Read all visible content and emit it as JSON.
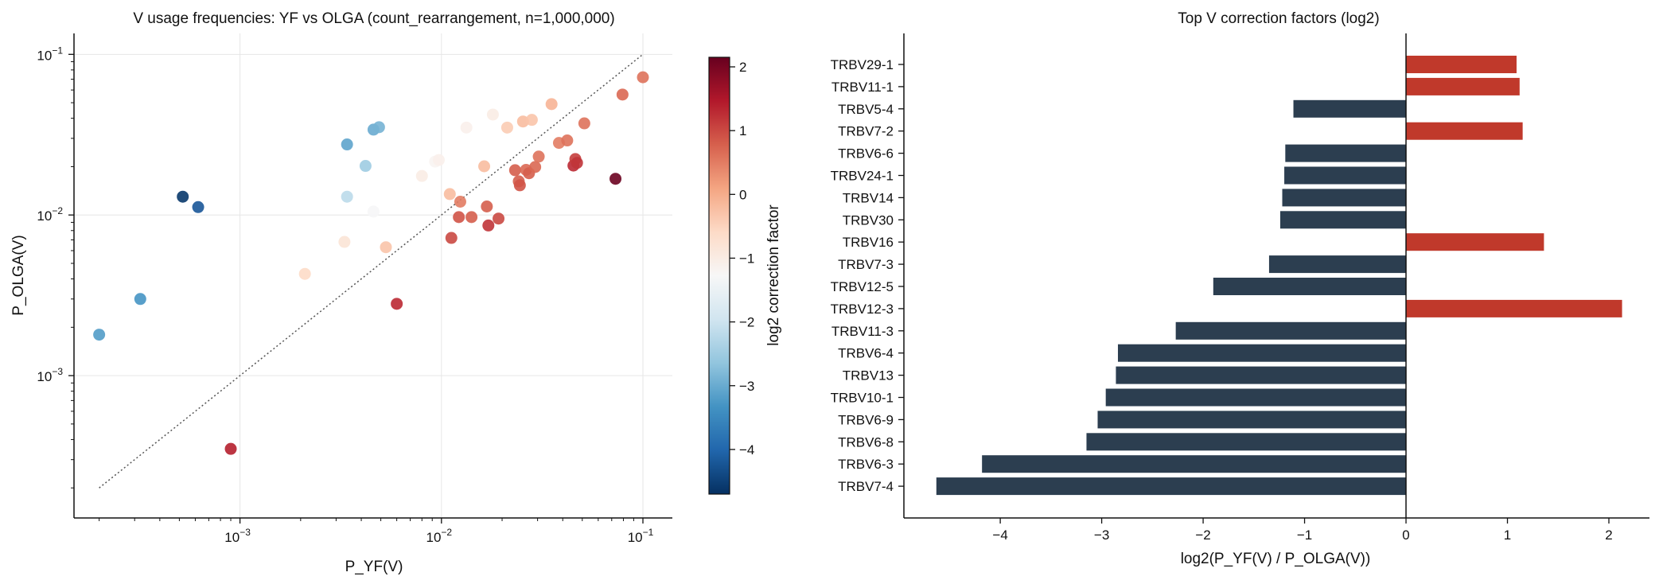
{
  "chart_data": [
    {
      "type": "scatter",
      "title": "V usage frequencies: YF vs OLGA (count_rearrangement, n=1,000,000)",
      "xlabel": "P_YF(V)",
      "ylabel": "P_OLGA(V)",
      "xscale": "log",
      "yscale": "log",
      "xlim": [
        0.00015,
        0.14
      ],
      "ylim": [
        0.00013,
        0.135
      ],
      "x_ticks": [
        {
          "value": 0.001,
          "base": "10",
          "exp": "−3"
        },
        {
          "value": 0.01,
          "base": "10",
          "exp": "−2"
        },
        {
          "value": 0.1,
          "base": "10",
          "exp": "−1"
        }
      ],
      "y_ticks": [
        {
          "value": 0.001,
          "base": "10",
          "exp": "−3"
        },
        {
          "value": 0.01,
          "base": "10",
          "exp": "−2"
        },
        {
          "value": 0.1,
          "base": "10",
          "exp": "−1"
        }
      ],
      "grid": true,
      "reference_line": {
        "type": "y=x",
        "style": "dotted",
        "range": [
          0.0002,
          0.1
        ]
      },
      "colorbar": {
        "label": "log2 correction factor",
        "range": [
          -4.7,
          2.15
        ],
        "ticks": [
          {
            "value": 2,
            "label": "2"
          },
          {
            "value": 1,
            "label": "1"
          },
          {
            "value": 0,
            "label": "0"
          },
          {
            "value": -1,
            "label": "−1"
          },
          {
            "value": -2,
            "label": "−2"
          },
          {
            "value": -3,
            "label": "−3"
          },
          {
            "value": -4,
            "label": "−4"
          }
        ],
        "colormap": "RdBu_r"
      },
      "points": [
        {
          "x": 0.0002,
          "y": 0.0018,
          "c": -3.2
        },
        {
          "x": 0.00032,
          "y": 0.003,
          "c": -3.3
        },
        {
          "x": 0.00052,
          "y": 0.013,
          "c": -4.6
        },
        {
          "x": 0.00062,
          "y": 0.0112,
          "c": -4.2
        },
        {
          "x": 0.0009,
          "y": 0.00035,
          "c": 1.4
        },
        {
          "x": 0.0021,
          "y": 0.0043,
          "c": -0.6
        },
        {
          "x": 0.0033,
          "y": 0.0068,
          "c": -0.8
        },
        {
          "x": 0.0034,
          "y": 0.0275,
          "c": -3.1
        },
        {
          "x": 0.0034,
          "y": 0.013,
          "c": -2.2
        },
        {
          "x": 0.0042,
          "y": 0.0202,
          "c": -2.5
        },
        {
          "x": 0.0046,
          "y": 0.034,
          "c": -3.0
        },
        {
          "x": 0.0049,
          "y": 0.0352,
          "c": -2.9
        },
        {
          "x": 0.0046,
          "y": 0.0105,
          "c": -1.3
        },
        {
          "x": 0.0053,
          "y": 0.0063,
          "c": -0.3
        },
        {
          "x": 0.006,
          "y": 0.0028,
          "c": 1.3
        },
        {
          "x": 0.008,
          "y": 0.0175,
          "c": -1.0
        },
        {
          "x": 0.0093,
          "y": 0.0215,
          "c": -1.2
        },
        {
          "x": 0.0097,
          "y": 0.022,
          "c": -1.1
        },
        {
          "x": 0.011,
          "y": 0.0135,
          "c": -0.2
        },
        {
          "x": 0.0112,
          "y": 0.0072,
          "c": 1.0
        },
        {
          "x": 0.0122,
          "y": 0.0097,
          "c": 0.9
        },
        {
          "x": 0.0124,
          "y": 0.0121,
          "c": 0.5
        },
        {
          "x": 0.0133,
          "y": 0.035,
          "c": -1.1
        },
        {
          "x": 0.0141,
          "y": 0.0097,
          "c": 0.8
        },
        {
          "x": 0.0163,
          "y": 0.0201,
          "c": -0.2
        },
        {
          "x": 0.0168,
          "y": 0.0113,
          "c": 0.8
        },
        {
          "x": 0.0171,
          "y": 0.0086,
          "c": 1.2
        },
        {
          "x": 0.018,
          "y": 0.0422,
          "c": -1.0
        },
        {
          "x": 0.0192,
          "y": 0.0095,
          "c": 1.0
        },
        {
          "x": 0.0212,
          "y": 0.035,
          "c": -0.4
        },
        {
          "x": 0.0232,
          "y": 0.019,
          "c": 0.8
        },
        {
          "x": 0.0242,
          "y": 0.0162,
          "c": 0.8
        },
        {
          "x": 0.0245,
          "y": 0.0153,
          "c": 0.9
        },
        {
          "x": 0.0254,
          "y": 0.0382,
          "c": -0.2
        },
        {
          "x": 0.0263,
          "y": 0.0191,
          "c": 0.7
        },
        {
          "x": 0.0272,
          "y": 0.0182,
          "c": 0.8
        },
        {
          "x": 0.0281,
          "y": 0.0391,
          "c": -0.3
        },
        {
          "x": 0.0292,
          "y": 0.0199,
          "c": 0.7
        },
        {
          "x": 0.0304,
          "y": 0.0231,
          "c": 0.6
        },
        {
          "x": 0.0352,
          "y": 0.049,
          "c": -0.1
        },
        {
          "x": 0.0383,
          "y": 0.0281,
          "c": 0.5
        },
        {
          "x": 0.0421,
          "y": 0.0291,
          "c": 0.6
        },
        {
          "x": 0.0452,
          "y": 0.0203,
          "c": 1.3
        },
        {
          "x": 0.0462,
          "y": 0.0223,
          "c": 1.1
        },
        {
          "x": 0.0471,
          "y": 0.0211,
          "c": 1.2
        },
        {
          "x": 0.0512,
          "y": 0.0372,
          "c": 0.6
        },
        {
          "x": 0.0731,
          "y": 0.0168,
          "c": 2.1
        },
        {
          "x": 0.0792,
          "y": 0.0562,
          "c": 0.7
        },
        {
          "x": 0.1,
          "y": 0.072,
          "c": 0.6
        }
      ]
    },
    {
      "type": "bar",
      "orientation": "horizontal",
      "title": "Top V correction factors (log2)",
      "xlabel": "log2(P_YF(V) / P_OLGA(V))",
      "ylabel": "",
      "xlim": [
        -4.95,
        2.4
      ],
      "x_ticks": [
        {
          "value": -4,
          "label": "−4"
        },
        {
          "value": -3,
          "label": "−3"
        },
        {
          "value": -2,
          "label": "−2"
        },
        {
          "value": -1,
          "label": "−1"
        },
        {
          "value": 0,
          "label": "0"
        },
        {
          "value": 1,
          "label": "1"
        },
        {
          "value": 2,
          "label": "2"
        }
      ],
      "positive_color": "#c0392b",
      "negative_color": "#2c3e50",
      "categories": [
        "TRBV29-1",
        "TRBV11-1",
        "TRBV5-4",
        "TRBV7-2",
        "TRBV6-6",
        "TRBV24-1",
        "TRBV14",
        "TRBV30",
        "TRBV16",
        "TRBV7-3",
        "TRBV12-5",
        "TRBV12-3",
        "TRBV11-3",
        "TRBV6-4",
        "TRBV13",
        "TRBV10-1",
        "TRBV6-9",
        "TRBV6-8",
        "TRBV6-3",
        "TRBV7-4"
      ],
      "values": [
        1.09,
        1.12,
        -1.11,
        1.15,
        -1.19,
        -1.2,
        -1.22,
        -1.24,
        1.36,
        -1.35,
        -1.9,
        2.13,
        -2.27,
        -2.84,
        -2.86,
        -2.96,
        -3.04,
        -3.15,
        -4.18,
        -4.63
      ]
    }
  ]
}
